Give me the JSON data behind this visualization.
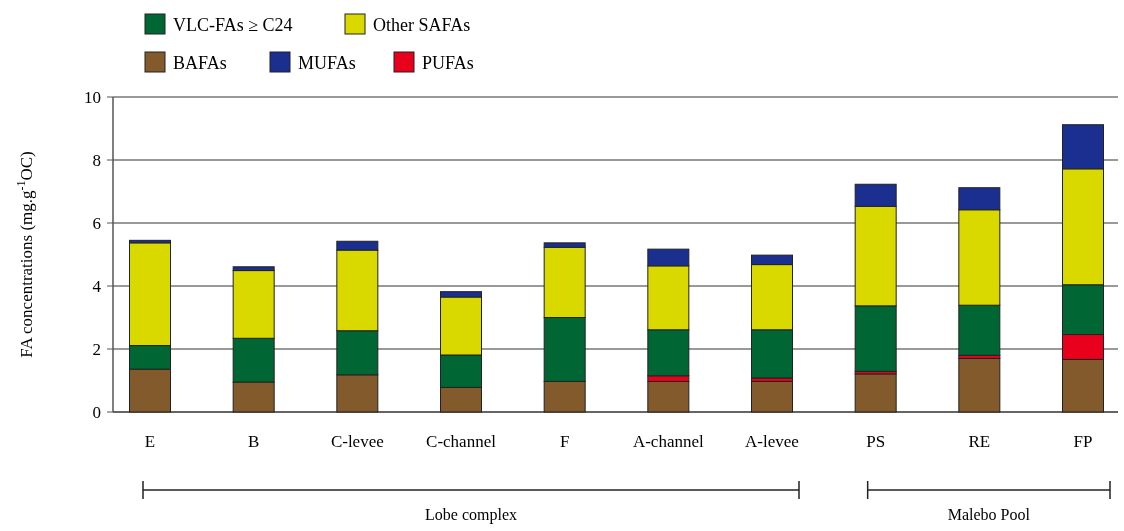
{
  "chart_data": {
    "type": "bar",
    "stacked": true,
    "ylabel": "FA concentrations (mg.g$^{-1}$OC)",
    "categories": [
      "E",
      "B",
      "C-levee",
      "C-channel",
      "F",
      "A-channel",
      "A-levee",
      "PS",
      "RE",
      "FP"
    ],
    "series": [
      {
        "name": "BAFAs",
        "color": "#825a2c",
        "values": [
          1.36,
          0.95,
          1.18,
          0.78,
          0.97,
          0.97,
          0.97,
          1.21,
          1.7,
          1.67
        ]
      },
      {
        "name": "PUFAs",
        "color": "#e8001c",
        "values": [
          0,
          0,
          null,
          null,
          0,
          0.18,
          0.11,
          0.08,
          0.1,
          0.79
        ]
      },
      {
        "name": "VLC-FAs ≥ C24",
        "color": "#006633",
        "values": [
          0.75,
          1.39,
          1.4,
          1.03,
          2.03,
          1.46,
          1.53,
          2.08,
          1.59,
          1.58
        ]
      },
      {
        "name": "Other SAFAs",
        "color": "#d9d900",
        "values": [
          3.26,
          2.15,
          2.56,
          1.84,
          2.23,
          2.03,
          2.07,
          3.16,
          3.03,
          3.68
        ]
      },
      {
        "name": "MUFAs",
        "color": "#1a2f8f",
        "values": [
          0.08,
          0.12,
          0.28,
          0.17,
          0.14,
          0.53,
          0.3,
          0.7,
          0.7,
          1.4
        ]
      }
    ],
    "ylim": [
      0,
      10
    ],
    "yticks": [
      0,
      2,
      4,
      6,
      8,
      10
    ],
    "grid": "y",
    "legend": "top left",
    "annotations": [
      "Lobe complex",
      "Malebo Pool"
    ]
  }
}
